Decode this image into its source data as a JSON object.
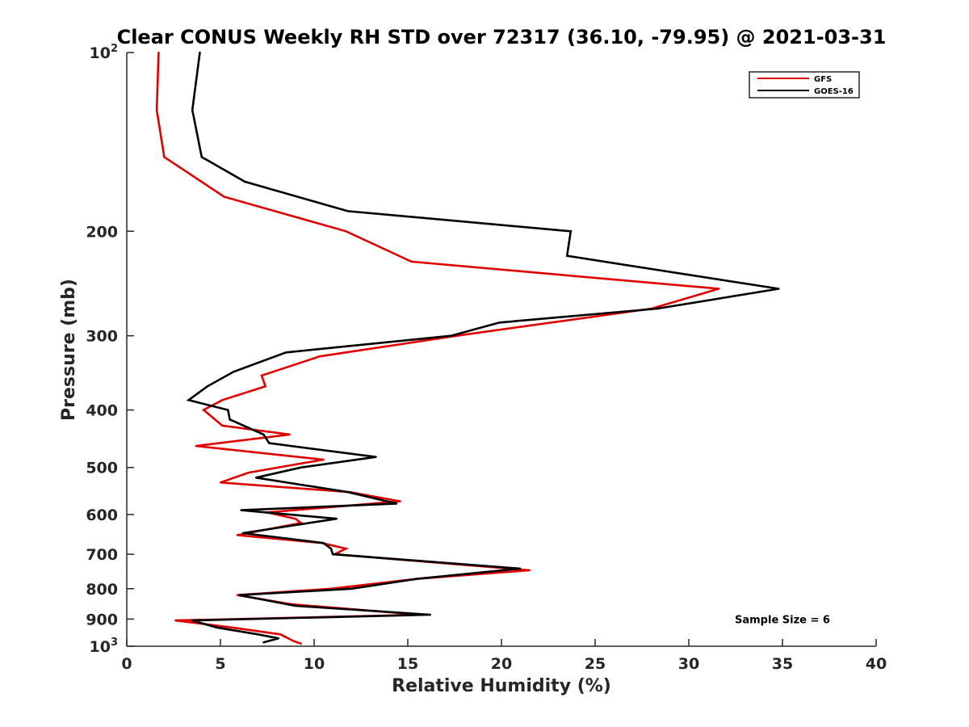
{
  "chart_data": {
    "type": "line",
    "title": "Clear CONUS Weekly RH STD over 72317 (36.10, -79.95) @ 2021-03-31",
    "xlabel": "Relative Humidity (%)",
    "ylabel": "Pressure (mb)",
    "xlim": [
      0,
      40
    ],
    "ylim": [
      100,
      1000
    ],
    "y_scale": "log",
    "y_reversed": true,
    "grid": false,
    "legend_position": "top-right",
    "x_ticks": [
      {
        "value": 0,
        "label": "0"
      },
      {
        "value": 5,
        "label": "5"
      },
      {
        "value": 10,
        "label": "10"
      },
      {
        "value": 15,
        "label": "15"
      },
      {
        "value": 20,
        "label": "20"
      },
      {
        "value": 25,
        "label": "25"
      },
      {
        "value": 30,
        "label": "30"
      },
      {
        "value": 35,
        "label": "35"
      },
      {
        "value": 40,
        "label": "40"
      }
    ],
    "y_ticks": [
      {
        "value": 100,
        "label": "10",
        "sup": "2"
      },
      {
        "value": 200,
        "label": "200",
        "sup": ""
      },
      {
        "value": 300,
        "label": "300",
        "sup": ""
      },
      {
        "value": 400,
        "label": "400",
        "sup": ""
      },
      {
        "value": 500,
        "label": "500",
        "sup": ""
      },
      {
        "value": 600,
        "label": "600",
        "sup": ""
      },
      {
        "value": 700,
        "label": "700",
        "sup": ""
      },
      {
        "value": 800,
        "label": "800",
        "sup": ""
      },
      {
        "value": 900,
        "label": "900",
        "sup": ""
      },
      {
        "value": 1000,
        "label": "10",
        "sup": "3"
      }
    ],
    "series": [
      {
        "name": "GFS",
        "color": "#e00000",
        "points": [
          {
            "x": 1.7,
            "y": 100
          },
          {
            "x": 1.6,
            "y": 125
          },
          {
            "x": 2.0,
            "y": 150
          },
          {
            "x": 5.2,
            "y": 175
          },
          {
            "x": 11.7,
            "y": 200
          },
          {
            "x": 15.2,
            "y": 225
          },
          {
            "x": 31.6,
            "y": 250
          },
          {
            "x": 28.0,
            "y": 270
          },
          {
            "x": 17.6,
            "y": 300
          },
          {
            "x": 10.3,
            "y": 325
          },
          {
            "x": 7.2,
            "y": 350
          },
          {
            "x": 7.4,
            "y": 365
          },
          {
            "x": 5.1,
            "y": 385
          },
          {
            "x": 4.1,
            "y": 400
          },
          {
            "x": 5.1,
            "y": 425
          },
          {
            "x": 8.7,
            "y": 440
          },
          {
            "x": 3.7,
            "y": 460
          },
          {
            "x": 10.5,
            "y": 485
          },
          {
            "x": 6.5,
            "y": 510
          },
          {
            "x": 5.0,
            "y": 530
          },
          {
            "x": 11.9,
            "y": 550
          },
          {
            "x": 14.6,
            "y": 570
          },
          {
            "x": 7.5,
            "y": 595
          },
          {
            "x": 9.0,
            "y": 610
          },
          {
            "x": 9.3,
            "y": 620
          },
          {
            "x": 5.9,
            "y": 650
          },
          {
            "x": 10.4,
            "y": 670
          },
          {
            "x": 11.7,
            "y": 685
          },
          {
            "x": 11.1,
            "y": 700
          },
          {
            "x": 21.5,
            "y": 745
          },
          {
            "x": 15.5,
            "y": 770
          },
          {
            "x": 10.9,
            "y": 800
          },
          {
            "x": 5.9,
            "y": 820
          },
          {
            "x": 8.8,
            "y": 850
          },
          {
            "x": 15.7,
            "y": 885
          },
          {
            "x": 2.6,
            "y": 905
          },
          {
            "x": 5.6,
            "y": 930
          },
          {
            "x": 8.2,
            "y": 955
          },
          {
            "x": 8.9,
            "y": 980
          },
          {
            "x": 9.3,
            "y": 990
          }
        ]
      },
      {
        "name": "GOES-16",
        "color": "#000000",
        "points": [
          {
            "x": 3.9,
            "y": 100
          },
          {
            "x": 3.5,
            "y": 125
          },
          {
            "x": 4.0,
            "y": 150
          },
          {
            "x": 6.3,
            "y": 165
          },
          {
            "x": 11.8,
            "y": 185
          },
          {
            "x": 23.7,
            "y": 200
          },
          {
            "x": 23.5,
            "y": 220
          },
          {
            "x": 34.8,
            "y": 250
          },
          {
            "x": 28.3,
            "y": 270
          },
          {
            "x": 19.9,
            "y": 285
          },
          {
            "x": 17.3,
            "y": 300
          },
          {
            "x": 8.5,
            "y": 320
          },
          {
            "x": 5.7,
            "y": 345
          },
          {
            "x": 4.3,
            "y": 365
          },
          {
            "x": 3.3,
            "y": 385
          },
          {
            "x": 5.4,
            "y": 400
          },
          {
            "x": 5.5,
            "y": 415
          },
          {
            "x": 7.3,
            "y": 440
          },
          {
            "x": 7.6,
            "y": 455
          },
          {
            "x": 13.3,
            "y": 480
          },
          {
            "x": 9.3,
            "y": 500
          },
          {
            "x": 6.9,
            "y": 520
          },
          {
            "x": 11.8,
            "y": 550
          },
          {
            "x": 14.4,
            "y": 575
          },
          {
            "x": 6.1,
            "y": 590
          },
          {
            "x": 11.2,
            "y": 610
          },
          {
            "x": 6.2,
            "y": 645
          },
          {
            "x": 10.5,
            "y": 670
          },
          {
            "x": 10.9,
            "y": 685
          },
          {
            "x": 11.0,
            "y": 700
          },
          {
            "x": 21.0,
            "y": 740
          },
          {
            "x": 15.5,
            "y": 770
          },
          {
            "x": 12.0,
            "y": 800
          },
          {
            "x": 6.0,
            "y": 820
          },
          {
            "x": 9.0,
            "y": 855
          },
          {
            "x": 16.2,
            "y": 885
          },
          {
            "x": 3.5,
            "y": 905
          },
          {
            "x": 4.8,
            "y": 930
          },
          {
            "x": 7.0,
            "y": 955
          },
          {
            "x": 8.1,
            "y": 970
          },
          {
            "x": 7.3,
            "y": 985
          }
        ]
      }
    ],
    "annotations": [
      {
        "text": "Sample Size = 6",
        "x": 35,
        "y": 900
      }
    ]
  }
}
